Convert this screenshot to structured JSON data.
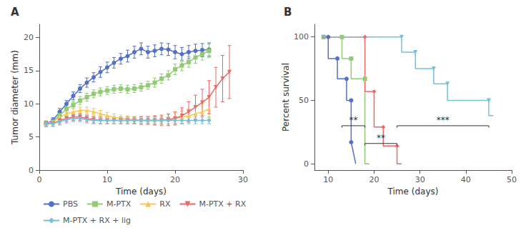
{
  "chart_data": [
    {
      "type": "line",
      "title": "A",
      "xlabel": "Time (days)",
      "ylabel": "Tumor diameter (mm)",
      "xlim": [
        0,
        30
      ],
      "ylim": [
        0,
        22
      ],
      "xticks": [
        0,
        10,
        20,
        30
      ],
      "yticks": [
        0,
        5,
        10,
        15,
        20
      ],
      "grid": false,
      "legend": "bottom",
      "series": [
        {
          "name": "PBS",
          "marker": "circle",
          "x": [
            1,
            2,
            3,
            4,
            5,
            6,
            7,
            8,
            9,
            10,
            11,
            12,
            13,
            14,
            15,
            16,
            17,
            18,
            19,
            20,
            21,
            22,
            23,
            24,
            25
          ],
          "values": [
            7.0,
            7.5,
            8.8,
            10.0,
            11.2,
            12.3,
            13.2,
            14.0,
            14.8,
            15.5,
            16.2,
            16.8,
            17.2,
            17.8,
            18.3,
            17.8,
            18.0,
            18.3,
            18.2,
            17.8,
            17.5,
            17.8,
            18.0,
            18.1,
            18.2
          ],
          "yerr": [
            0.4,
            0.4,
            0.5,
            0.5,
            0.6,
            0.6,
            0.7,
            0.7,
            0.8,
            0.8,
            0.8,
            0.8,
            0.9,
            0.9,
            0.9,
            0.9,
            0.9,
            0.9,
            0.9,
            1.0,
            1.0,
            1.0,
            1.0,
            1.0,
            1.0
          ]
        },
        {
          "name": "M-PTX",
          "marker": "square",
          "x": [
            1,
            2,
            3,
            4,
            5,
            6,
            7,
            8,
            9,
            10,
            11,
            12,
            13,
            14,
            15,
            16,
            17,
            18,
            19,
            20,
            21,
            22,
            23,
            24,
            25
          ],
          "values": [
            7.0,
            7.3,
            8.3,
            9.2,
            9.8,
            10.5,
            11.0,
            11.5,
            11.8,
            12.0,
            12.2,
            12.3,
            12.2,
            12.3,
            12.5,
            12.8,
            13.2,
            13.8,
            14.3,
            15.2,
            15.8,
            16.3,
            17.0,
            17.5,
            18.0
          ],
          "yerr": [
            0.4,
            0.4,
            0.5,
            0.5,
            0.5,
            0.6,
            0.6,
            0.6,
            0.6,
            0.6,
            0.6,
            0.6,
            0.6,
            0.6,
            0.6,
            0.6,
            0.7,
            0.7,
            0.7,
            0.8,
            0.8,
            0.8,
            0.9,
            0.9,
            1.0
          ]
        },
        {
          "name": "RX",
          "marker": "triangle",
          "x": [
            1,
            2,
            3,
            4,
            5,
            6,
            7,
            8,
            9,
            10,
            11,
            12,
            13,
            14,
            15,
            16,
            17,
            18,
            19,
            20,
            21,
            22,
            23,
            24,
            25
          ],
          "values": [
            7.0,
            7.2,
            8.0,
            8.5,
            8.8,
            9.0,
            9.0,
            8.8,
            8.5,
            8.2,
            8.0,
            7.8,
            7.7,
            7.6,
            7.5,
            7.5,
            7.5,
            7.5,
            7.6,
            7.8,
            8.0,
            8.2,
            8.5,
            8.8,
            9.2
          ],
          "yerr": [
            0.4,
            0.4,
            0.5,
            0.5,
            0.5,
            0.5,
            0.5,
            0.5,
            0.5,
            0.5,
            0.5,
            0.5,
            0.5,
            0.5,
            0.5,
            0.5,
            0.6,
            0.6,
            0.7,
            0.8,
            0.9,
            1.0,
            1.1,
            1.3,
            1.5
          ]
        },
        {
          "name": "M-PTX + RX",
          "marker": "triangle_down",
          "x": [
            1,
            2,
            3,
            4,
            5,
            6,
            7,
            8,
            9,
            10,
            11,
            12,
            13,
            14,
            15,
            16,
            17,
            18,
            19,
            20,
            21,
            22,
            23,
            24,
            25,
            26,
            27,
            28
          ],
          "values": [
            7.0,
            7.0,
            7.5,
            7.8,
            8.0,
            8.0,
            7.8,
            7.6,
            7.5,
            7.5,
            7.5,
            7.5,
            7.5,
            7.5,
            7.5,
            7.5,
            7.5,
            7.5,
            7.6,
            7.8,
            8.2,
            8.8,
            9.5,
            10.2,
            11.0,
            12.5,
            13.8,
            14.8
          ],
          "yerr": [
            0.4,
            0.4,
            0.5,
            0.5,
            0.5,
            0.5,
            0.5,
            0.5,
            0.5,
            0.5,
            0.5,
            0.5,
            0.5,
            0.5,
            0.6,
            0.6,
            0.7,
            0.8,
            0.9,
            1.0,
            1.2,
            1.5,
            1.8,
            2.0,
            2.5,
            3.0,
            3.5,
            4.0
          ]
        },
        {
          "name": "M-PTX + RX + lig",
          "marker": "diamond",
          "x": [
            1,
            2,
            3,
            4,
            5,
            6,
            7,
            8,
            9,
            10,
            11,
            12,
            13,
            14,
            15,
            16,
            17,
            18,
            19,
            20,
            21,
            22,
            23,
            24,
            25
          ],
          "values": [
            7.0,
            7.0,
            7.3,
            7.6,
            7.8,
            7.8,
            7.6,
            7.5,
            7.5,
            7.5,
            7.5,
            7.5,
            7.5,
            7.5,
            7.5,
            7.5,
            7.5,
            7.5,
            7.5,
            7.5,
            7.5,
            7.5,
            7.5,
            7.5,
            7.5
          ],
          "yerr": [
            0.4,
            0.4,
            0.5,
            0.5,
            0.5,
            0.5,
            0.5,
            0.5,
            0.5,
            0.5,
            0.5,
            0.5,
            0.5,
            0.5,
            0.5,
            0.5,
            0.5,
            0.5,
            0.5,
            0.5,
            0.5,
            0.5,
            0.5,
            0.5,
            0.5
          ]
        }
      ]
    },
    {
      "type": "line",
      "title": "B",
      "xlabel": "Time (days)",
      "ylabel": "Percent survival",
      "xlim": [
        7,
        50
      ],
      "ylim": [
        -5,
        110
      ],
      "xticks": [
        10,
        20,
        30,
        40,
        50
      ],
      "yticks": [
        0,
        50,
        100
      ],
      "grid": false,
      "series": [
        {
          "name": "PBS",
          "marker": "circle",
          "x": [
            9,
            10,
            10,
            12,
            12,
            14,
            14,
            15,
            15,
            16
          ],
          "values": [
            100,
            100,
            83,
            83,
            67,
            67,
            50,
            50,
            17,
            0
          ]
        },
        {
          "name": "M-PTX",
          "marker": "square",
          "x": [
            9,
            13,
            13,
            15,
            15,
            18,
            18,
            19
          ],
          "values": [
            100,
            100,
            83,
            83,
            67,
            67,
            0,
            0
          ]
        },
        {
          "name": "M-PTX + RX",
          "marker": "diamond",
          "x": [
            9,
            18,
            18,
            20,
            20,
            22,
            22,
            25,
            25,
            26
          ],
          "values": [
            100,
            100,
            57,
            57,
            29,
            29,
            14,
            14,
            0,
            0
          ]
        },
        {
          "name": "M-PTX + RX + lig",
          "marker": "triangle_down",
          "x": [
            9,
            26,
            26,
            29,
            29,
            33,
            33,
            36,
            36,
            45,
            45,
            46
          ],
          "values": [
            100,
            100,
            88,
            88,
            75,
            75,
            63,
            63,
            50,
            50,
            38,
            38
          ]
        }
      ],
      "annotations": [
        {
          "text": "**",
          "x1": 13,
          "x2": 18,
          "y": 30,
          "ty": 31
        },
        {
          "text": "**",
          "x1": 18,
          "x2": 25,
          "y": 16,
          "ty": 17
        },
        {
          "text": "***",
          "x1": 25,
          "x2": 45,
          "y": 30,
          "ty": 31
        }
      ]
    }
  ]
}
